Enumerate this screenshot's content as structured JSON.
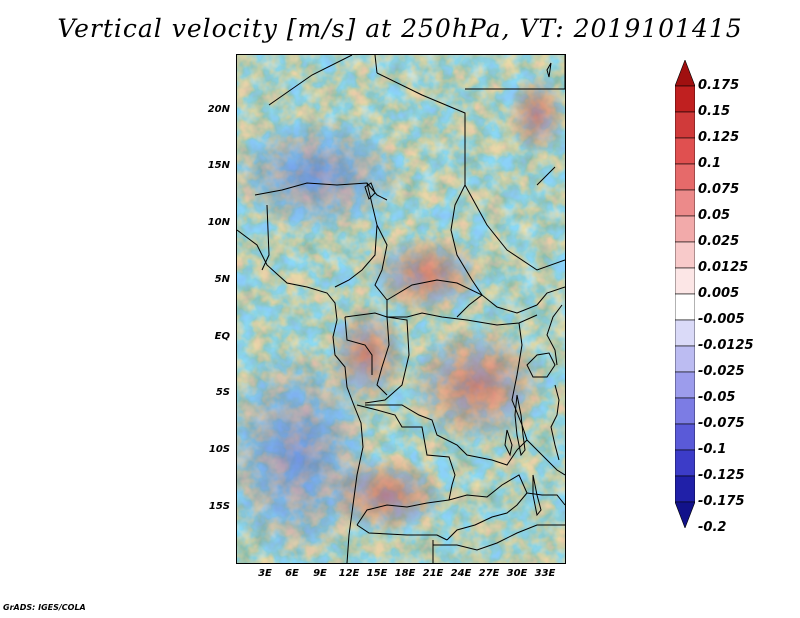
{
  "title": "Vertical velocity [m/s] at 250hPa, VT: 2019101415",
  "y_ticks": [
    "20N",
    "15N",
    "10N",
    "5N",
    "EQ",
    "5S",
    "10S",
    "15S"
  ],
  "x_ticks": [
    "3E",
    "6E",
    "9E",
    "12E",
    "15E",
    "18E",
    "21E",
    "24E",
    "27E",
    "30E",
    "33E"
  ],
  "colorbar": {
    "labels": [
      "0.175",
      "0.15",
      "0.125",
      "0.1",
      "0.075",
      "0.05",
      "0.025",
      "0.0125",
      "0.005",
      "-0.005",
      "-0.0125",
      "-0.025",
      "-0.05",
      "-0.075",
      "-0.1",
      "-0.125",
      "-0.175",
      "-0.2"
    ],
    "colors": [
      "#a01010",
      "#c02020",
      "#d03a3a",
      "#e05050",
      "#e66a6a",
      "#ec8a8a",
      "#f2aaaa",
      "#f8caca",
      "#fce6e6",
      "#ffffff",
      "#dadaf8",
      "#bcbcf2",
      "#9c9cec",
      "#7c7ce4",
      "#5a5ad8",
      "#3c3cc8",
      "#2020a8",
      "#12128a"
    ]
  },
  "footer": "GrADS: IGES/COLA"
}
